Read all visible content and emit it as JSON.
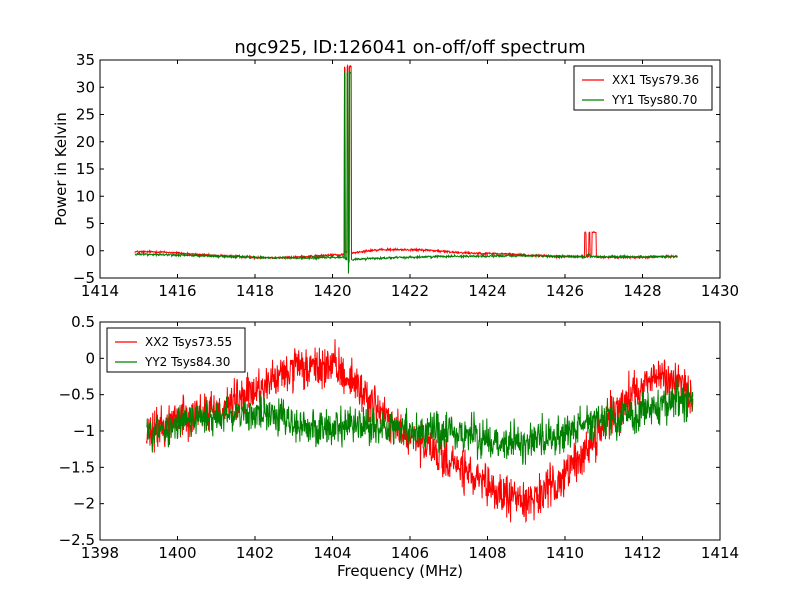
{
  "title": "ngc925, ID:126041 on-off/off spectrum",
  "chart_data": [
    {
      "type": "line",
      "ylabel": "Power in Kelvin",
      "xlabel": "",
      "xlim": [
        1414,
        1430
      ],
      "ylim": [
        -5,
        35
      ],
      "xticks": [
        1414,
        1416,
        1418,
        1420,
        1422,
        1424,
        1426,
        1428,
        1430
      ],
      "yticks": [
        -5,
        0,
        5,
        10,
        15,
        20,
        25,
        30,
        35
      ],
      "grid": false,
      "legend_position": "top-right",
      "series": [
        {
          "name": "XX1 Tsys79.36",
          "color": "#ff0000",
          "noise": 0.15,
          "x": [
            1414.9,
            1415.5,
            1416,
            1416.5,
            1417,
            1417.5,
            1418,
            1418.5,
            1419,
            1419.5,
            1420,
            1420.3,
            1420.38,
            1420.41,
            1420.44,
            1420.5,
            1420.8,
            1421,
            1421.5,
            1422,
            1422.5,
            1423,
            1423.5,
            1424,
            1424.5,
            1425,
            1425.5,
            1426,
            1426.5,
            1426.62,
            1426.65,
            1426.68,
            1426.8,
            1427,
            1427.5,
            1428,
            1428.5,
            1428.9
          ],
          "y": [
            -0.2,
            -0.2,
            -0.4,
            -0.7,
            -0.9,
            -1.0,
            -1.2,
            -1.3,
            -1.2,
            -1.0,
            -0.8,
            -0.3,
            33.8,
            -2.0,
            -0.8,
            -0.4,
            -0.1,
            0.1,
            0.2,
            0.2,
            0.1,
            -0.2,
            -0.4,
            -0.5,
            -0.6,
            -0.8,
            -1.0,
            -1.1,
            -1.1,
            3.4,
            -1.1,
            -1.1,
            -1.1,
            -1.2,
            -1.2,
            -1.2,
            -1.1,
            -1.0
          ]
        },
        {
          "name": "YY1 Tsys80.70",
          "color": "#008000",
          "noise": 0.15,
          "x": [
            1414.9,
            1415.5,
            1416,
            1416.5,
            1417,
            1417.5,
            1418,
            1418.5,
            1419,
            1419.5,
            1420,
            1420.3,
            1420.38,
            1420.41,
            1420.44,
            1420.5,
            1420.8,
            1421,
            1421.5,
            1422,
            1422.5,
            1423,
            1423.5,
            1424,
            1424.5,
            1425,
            1425.5,
            1426,
            1426.5,
            1426.62,
            1426.65,
            1426.68,
            1426.8,
            1427,
            1427.5,
            1428,
            1428.5,
            1428.9
          ],
          "y": [
            -0.6,
            -0.7,
            -0.8,
            -0.9,
            -1.0,
            -1.1,
            -1.2,
            -1.3,
            -1.3,
            -1.3,
            -1.2,
            -1.5,
            32.6,
            -4.2,
            -2.0,
            -1.6,
            -1.5,
            -1.4,
            -1.3,
            -1.2,
            -1.1,
            -1.0,
            -1.0,
            -1.0,
            -0.9,
            -0.9,
            -1.0,
            -1.0,
            -1.1,
            -0.6,
            -1.1,
            -1.1,
            -1.1,
            -1.1,
            -1.1,
            -1.1,
            -1.1,
            -1.1
          ]
        }
      ]
    },
    {
      "type": "line",
      "ylabel": "",
      "xlabel": "Frequency (MHz)",
      "xlim": [
        1398,
        1414
      ],
      "ylim": [
        -2.5,
        0.5
      ],
      "xticks": [
        1398,
        1400,
        1402,
        1404,
        1406,
        1408,
        1410,
        1412,
        1414
      ],
      "yticks": [
        -2.5,
        -2.0,
        -1.5,
        -1.0,
        -0.5,
        0.0,
        0.5
      ],
      "grid": false,
      "legend_position": "top-left",
      "series": [
        {
          "name": "XX2 Tsys73.55",
          "color": "#ff0000",
          "noise": 0.22,
          "x": [
            1399.2,
            1399.6,
            1400,
            1400.5,
            1401,
            1401.5,
            1402,
            1402.5,
            1403,
            1403.5,
            1404,
            1404.5,
            1405,
            1405.5,
            1406,
            1406.5,
            1407,
            1407.5,
            1408,
            1408.5,
            1409,
            1409.5,
            1410,
            1410.5,
            1411,
            1411.5,
            1412,
            1412.5,
            1413,
            1413.3
          ],
          "y": [
            -1.1,
            -0.95,
            -0.8,
            -0.75,
            -0.7,
            -0.6,
            -0.45,
            -0.3,
            -0.15,
            -0.15,
            -0.1,
            -0.3,
            -0.6,
            -0.9,
            -1.1,
            -1.25,
            -1.4,
            -1.6,
            -1.8,
            -1.9,
            -1.95,
            -1.85,
            -1.6,
            -1.3,
            -0.9,
            -0.6,
            -0.35,
            -0.25,
            -0.35,
            -0.6
          ]
        },
        {
          "name": "YY2 Tsys84.30",
          "color": "#008000",
          "noise": 0.2,
          "x": [
            1399.2,
            1399.6,
            1400,
            1400.5,
            1401,
            1401.5,
            1402,
            1402.5,
            1403,
            1403.5,
            1404,
            1404.5,
            1405,
            1405.5,
            1406,
            1406.5,
            1407,
            1407.5,
            1408,
            1408.5,
            1409,
            1409.5,
            1410,
            1410.5,
            1411,
            1411.5,
            1412,
            1412.5,
            1413,
            1413.3
          ],
          "y": [
            -1.0,
            -1.0,
            -0.9,
            -0.8,
            -0.8,
            -0.75,
            -0.75,
            -0.8,
            -0.9,
            -0.95,
            -0.95,
            -0.95,
            -0.95,
            -0.95,
            -1.0,
            -1.0,
            -1.0,
            -1.05,
            -1.1,
            -1.15,
            -1.15,
            -1.1,
            -1.0,
            -0.9,
            -0.85,
            -0.8,
            -0.75,
            -0.65,
            -0.55,
            -0.6
          ]
        }
      ]
    }
  ]
}
